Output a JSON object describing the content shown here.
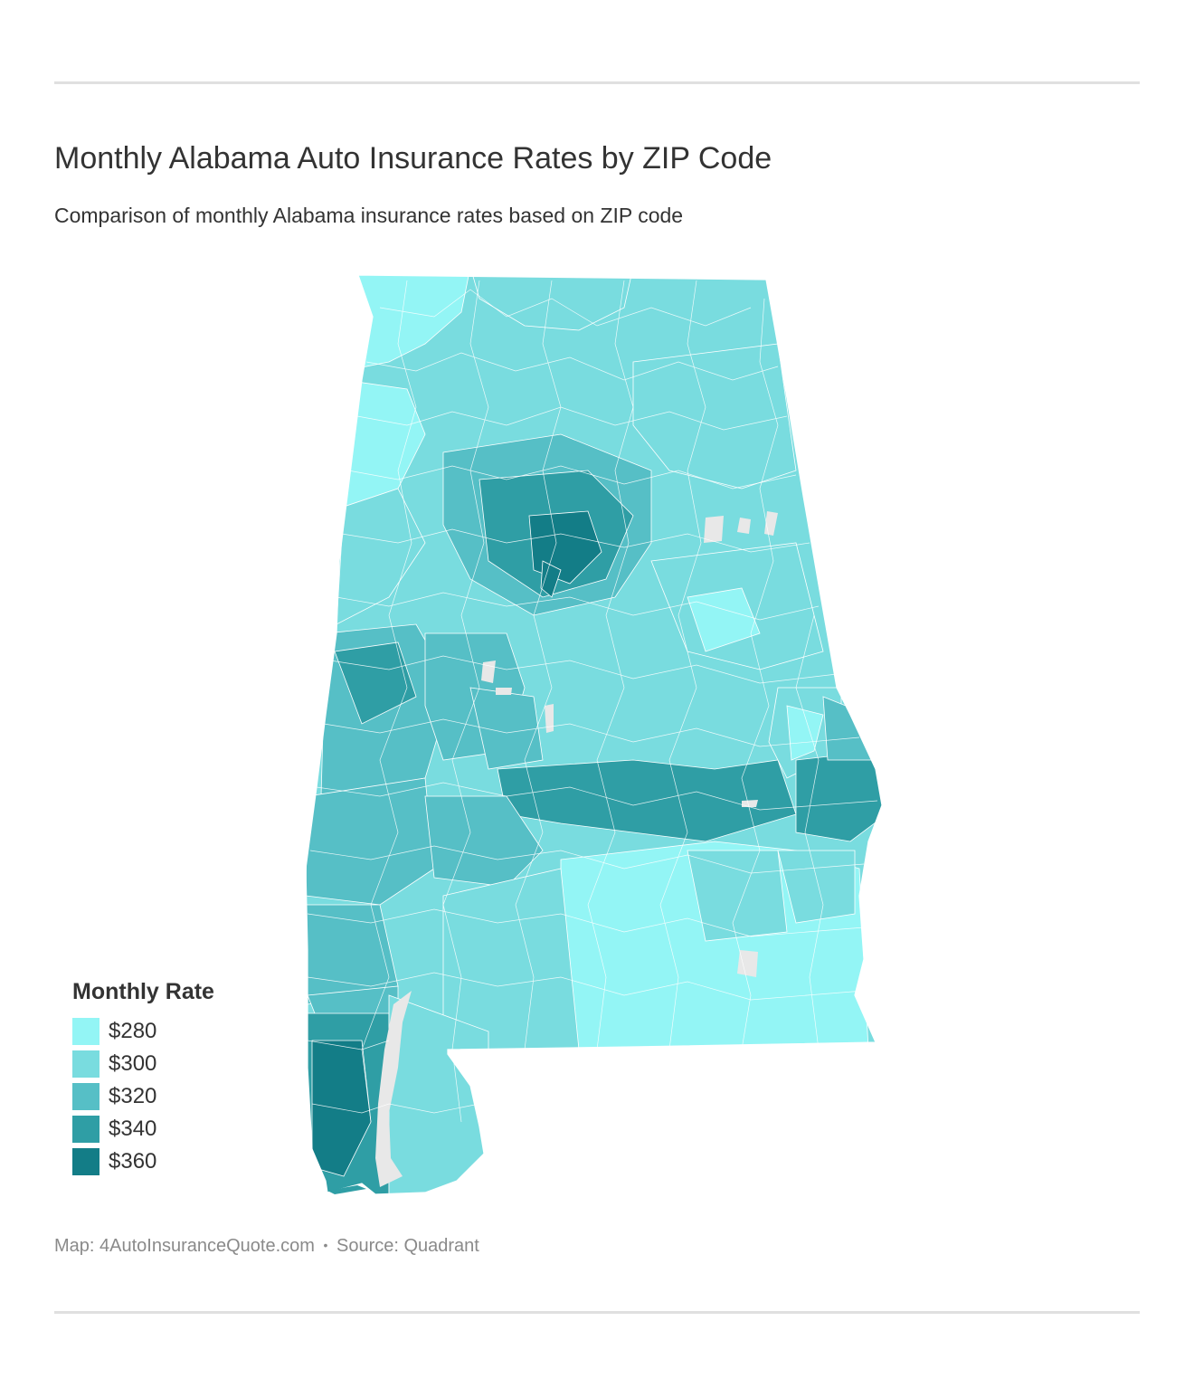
{
  "header": {
    "title": "Monthly Alabama Auto Insurance Rates by ZIP Code",
    "subtitle": "Comparison of monthly Alabama insurance rates based on ZIP code"
  },
  "legend": {
    "title": "Monthly Rate",
    "items": [
      {
        "label": "$280",
        "color": "#93f5f5"
      },
      {
        "label": "$300",
        "color": "#79dcdf"
      },
      {
        "label": "$320",
        "color": "#56bfc6"
      },
      {
        "label": "$340",
        "color": "#2f9ea5"
      },
      {
        "label": "$360",
        "color": "#137d87"
      }
    ]
  },
  "map": {
    "region": "Alabama",
    "no_data_color": "#e8e8e8",
    "border_color": "#ffffff"
  },
  "footer": {
    "map_credit": "Map: 4AutoInsuranceQuote.com",
    "separator": "•",
    "source": "Source: Quadrant"
  }
}
